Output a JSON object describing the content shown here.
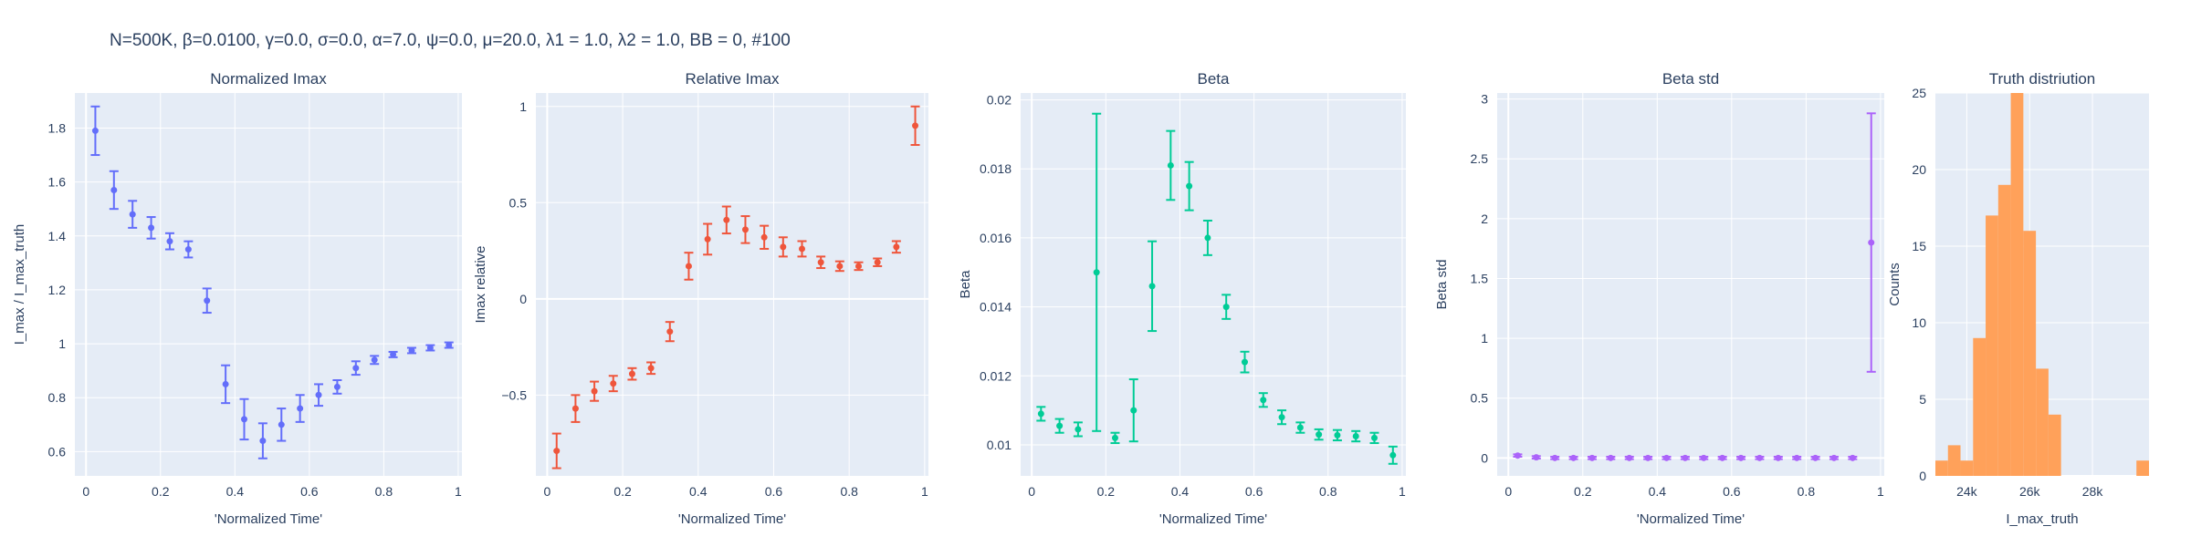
{
  "figure_title": "N=500K, β=0.0100, γ=0.0, σ=0.0,  α=7.0, ψ=0.0, μ=20.0, λ1 = 1.0, λ2 = 1.0, BB = 0, #100",
  "chart_data": [
    {
      "type": "scatter",
      "title": "Normalized Imax",
      "xlabel": "'Normalized Time'",
      "ylabel": "I_max / I_max_truth",
      "color": "#636efa",
      "xlim": [
        -0.03,
        1.01
      ],
      "ylim": [
        0.51,
        1.93
      ],
      "xticks": [
        0,
        0.2,
        0.4,
        0.6,
        0.8,
        1
      ],
      "xtick_labels": [
        "0",
        "0.2",
        "0.4",
        "0.6",
        "0.8",
        "1"
      ],
      "yticks": [
        0.6,
        0.8,
        1,
        1.2,
        1.4,
        1.6,
        1.8
      ],
      "ytick_labels": [
        "0.6",
        "0.8",
        "1",
        "1.2",
        "1.4",
        "1.6",
        "1.8"
      ],
      "x": [
        0.025,
        0.075,
        0.125,
        0.175,
        0.225,
        0.275,
        0.325,
        0.375,
        0.425,
        0.475,
        0.525,
        0.575,
        0.625,
        0.675,
        0.725,
        0.775,
        0.825,
        0.875,
        0.925,
        0.975
      ],
      "y": [
        1.79,
        1.57,
        1.48,
        1.43,
        1.38,
        1.35,
        1.16,
        0.85,
        0.72,
        0.64,
        0.7,
        0.76,
        0.81,
        0.84,
        0.91,
        0.94,
        0.96,
        0.975,
        0.985,
        0.995
      ],
      "err": [
        0.09,
        0.07,
        0.05,
        0.04,
        0.03,
        0.03,
        0.045,
        0.07,
        0.075,
        0.065,
        0.06,
        0.05,
        0.04,
        0.025,
        0.025,
        0.015,
        0.01,
        0.01,
        0.01,
        0.01
      ]
    },
    {
      "type": "scatter",
      "title": "Relative Imax",
      "xlabel": "'Normalized Time'",
      "ylabel": "Imax relative",
      "color": "#ef553b",
      "xlim": [
        -0.03,
        1.01
      ],
      "ylim": [
        -0.92,
        1.07
      ],
      "xticks": [
        0,
        0.2,
        0.4,
        0.6,
        0.8,
        1
      ],
      "xtick_labels": [
        "0",
        "0.2",
        "0.4",
        "0.6",
        "0.8",
        "1"
      ],
      "yticks": [
        -0.5,
        0,
        0.5,
        1
      ],
      "ytick_labels": [
        "−0.5",
        "0",
        "0.5",
        "1"
      ],
      "x": [
        0.025,
        0.075,
        0.125,
        0.175,
        0.225,
        0.275,
        0.325,
        0.375,
        0.425,
        0.475,
        0.525,
        0.575,
        0.625,
        0.675,
        0.725,
        0.775,
        0.825,
        0.875,
        0.925,
        0.975
      ],
      "y": [
        -0.79,
        -0.57,
        -0.48,
        -0.44,
        -0.39,
        -0.36,
        -0.17,
        0.17,
        0.31,
        0.41,
        0.36,
        0.32,
        0.27,
        0.26,
        0.19,
        0.17,
        0.17,
        0.19,
        0.27,
        0.9
      ],
      "err": [
        0.09,
        0.07,
        0.05,
        0.04,
        0.03,
        0.03,
        0.05,
        0.07,
        0.08,
        0.07,
        0.07,
        0.06,
        0.05,
        0.04,
        0.03,
        0.025,
        0.02,
        0.02,
        0.03,
        0.1
      ]
    },
    {
      "type": "scatter",
      "title": "Beta",
      "xlabel": "'Normalized Time'",
      "ylabel": "Beta",
      "color": "#00cc96",
      "xlim": [
        -0.03,
        1.01
      ],
      "ylim": [
        0.0091,
        0.0202
      ],
      "xticks": [
        0,
        0.2,
        0.4,
        0.6,
        0.8,
        1
      ],
      "xtick_labels": [
        "0",
        "0.2",
        "0.4",
        "0.6",
        "0.8",
        "1"
      ],
      "yticks": [
        0.01,
        0.012,
        0.014,
        0.016,
        0.018,
        0.02
      ],
      "ytick_labels": [
        "0.01",
        "0.012",
        "0.014",
        "0.016",
        "0.018",
        "0.02"
      ],
      "x": [
        0.025,
        0.075,
        0.125,
        0.175,
        0.225,
        0.275,
        0.325,
        0.375,
        0.425,
        0.475,
        0.525,
        0.575,
        0.625,
        0.675,
        0.725,
        0.775,
        0.825,
        0.875,
        0.925,
        0.975
      ],
      "y": [
        0.0109,
        0.01055,
        0.01045,
        0.015,
        0.0102,
        0.011,
        0.0146,
        0.0181,
        0.0175,
        0.016,
        0.014,
        0.0124,
        0.0113,
        0.0108,
        0.0105,
        0.0103,
        0.01028,
        0.01025,
        0.0102,
        0.0097
      ],
      "err": [
        0.0002,
        0.0002,
        0.0002,
        0.0046,
        0.00015,
        0.0009,
        0.0013,
        0.001,
        0.0007,
        0.0005,
        0.00035,
        0.0003,
        0.0002,
        0.0002,
        0.00015,
        0.00015,
        0.00015,
        0.00015,
        0.00015,
        0.00025
      ]
    },
    {
      "type": "scatter",
      "title": "Beta std",
      "xlabel": "'Normalized Time'",
      "ylabel": "Beta std",
      "color": "#ab63fa",
      "xlim": [
        -0.03,
        1.01
      ],
      "ylim": [
        -0.15,
        3.05
      ],
      "xticks": [
        0,
        0.2,
        0.4,
        0.6,
        0.8,
        1
      ],
      "xtick_labels": [
        "0",
        "0.2",
        "0.4",
        "0.6",
        "0.8",
        "1"
      ],
      "yticks": [
        0,
        0.5,
        1,
        1.5,
        2,
        2.5,
        3
      ],
      "ytick_labels": [
        "0",
        "0.5",
        "1",
        "1.5",
        "2",
        "2.5",
        "3"
      ],
      "x": [
        0.025,
        0.075,
        0.125,
        0.175,
        0.225,
        0.275,
        0.325,
        0.375,
        0.425,
        0.475,
        0.525,
        0.575,
        0.625,
        0.675,
        0.725,
        0.775,
        0.825,
        0.875,
        0.925,
        0.975
      ],
      "y": [
        0.02,
        0.005,
        0.0,
        0.0,
        0.0,
        0.0,
        0.0,
        0.0,
        0.0,
        0.0,
        0.0,
        0.0,
        0.0,
        0.0,
        0.0,
        0.0,
        0.0,
        0.0,
        0.0,
        1.8
      ],
      "err": [
        0.01,
        0.01,
        0.01,
        0.01,
        0.01,
        0.01,
        0.01,
        0.01,
        0.01,
        0.01,
        0.01,
        0.01,
        0.01,
        0.01,
        0.01,
        0.01,
        0.01,
        0.01,
        0.01,
        1.08
      ]
    },
    {
      "type": "bar",
      "title": "Truth distriution",
      "xlabel": "I_max_truth",
      "ylabel": "Counts",
      "color": "#ffa15a",
      "xlim": [
        23000,
        29800
      ],
      "ylim": [
        0,
        25
      ],
      "xticks": [
        24000,
        26000,
        28000
      ],
      "xtick_labels": [
        "24k",
        "26k",
        "28k"
      ],
      "yticks": [
        0,
        5,
        10,
        15,
        20,
        25
      ],
      "ytick_labels": [
        "0",
        "5",
        "10",
        "15",
        "20",
        "25"
      ],
      "bin_width": 400,
      "bin_starts": [
        23000,
        23400,
        23800,
        24200,
        24600,
        25000,
        25400,
        25800,
        26200,
        26600,
        27000,
        27400,
        27800,
        28200,
        28600,
        29000,
        29400
      ],
      "counts": [
        1,
        2,
        1,
        9,
        17,
        19,
        25,
        16,
        7,
        4,
        0,
        0,
        0,
        0,
        0,
        0,
        1
      ]
    }
  ]
}
